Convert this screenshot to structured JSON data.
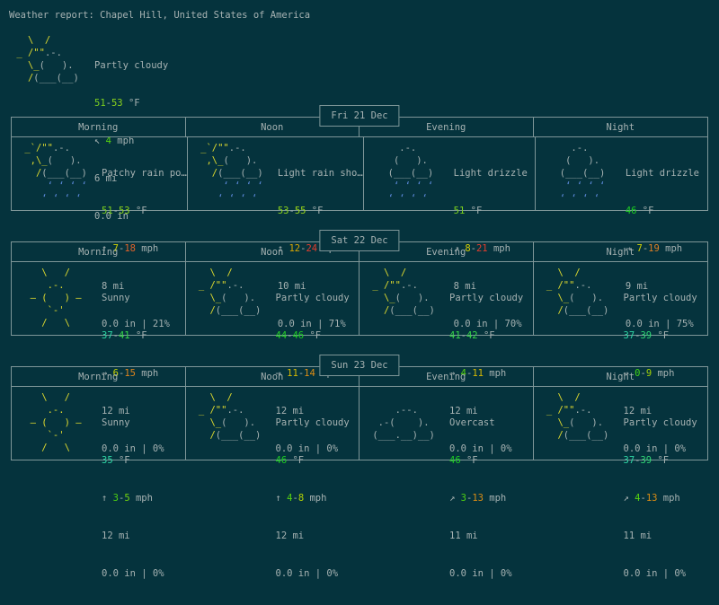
{
  "palette": {
    "bg": "#05333d",
    "fg": "#a6b2b2",
    "border": "#7e9698",
    "sun": "#ddd92f",
    "cloud": "#a6b2b2",
    "rain": "#5a87d6"
  },
  "title": "Weather report: Chapel Hill, United States of America",
  "columns": [
    "Morning",
    "Noon",
    "Evening",
    "Night"
  ],
  "icons": {
    "partly_cloudy": [
      [
        [
          "   \\  /",
          "sun"
        ]
      ],
      [
        [
          " _ /\"\"",
          "sun"
        ],
        [
          ".-.",
          "cloud"
        ]
      ],
      [
        [
          "   \\_",
          "sun"
        ],
        [
          "(   ).",
          "cloud"
        ]
      ],
      [
        [
          "   /",
          "sun"
        ],
        [
          "(___(__)",
          "cloud"
        ]
      ],
      []
    ],
    "sunny": [
      [
        [
          "    \\   /",
          "sun"
        ]
      ],
      [
        [
          "     .-.",
          "sun"
        ]
      ],
      [
        [
          "  – (   ) –",
          "sun"
        ]
      ],
      [
        [
          "     `-'",
          "sun"
        ]
      ],
      [
        [
          "    /   \\",
          "sun"
        ]
      ]
    ],
    "rain_sun": [
      [
        [
          " _`/\"\"",
          "sun"
        ],
        [
          ".-.",
          "cloud"
        ]
      ],
      [
        [
          "  ,\\_",
          "sun"
        ],
        [
          "(   ).",
          "cloud"
        ]
      ],
      [
        [
          "   /",
          "sun"
        ],
        [
          "(___(__)",
          "cloud"
        ]
      ],
      [
        [
          "     ‘ ‘ ‘ ‘",
          "rain"
        ]
      ],
      [
        [
          "    ‘ ‘ ‘ ‘",
          "rain"
        ]
      ]
    ],
    "drizzle": [
      [
        [
          "     .-.",
          "cloud"
        ]
      ],
      [
        [
          "    (   ).",
          "cloud"
        ]
      ],
      [
        [
          "   (___(__)",
          "cloud"
        ]
      ],
      [
        [
          "    ‘ ‘ ‘ ‘",
          "rain"
        ]
      ],
      [
        [
          "   ‘ ‘ ‘ ‘",
          "rain"
        ]
      ]
    ],
    "overcast": [
      [],
      [
        [
          "     .--.",
          "cloud"
        ]
      ],
      [
        [
          "  .-(    ).",
          "cloud"
        ]
      ],
      [
        [
          " (___.__)__)",
          "cloud"
        ]
      ],
      []
    ]
  },
  "current": {
    "icon": "partly_cloudy",
    "lines": [
      [
        [
          "Partly cloudy"
        ]
      ],
      [
        [
          "51",
          "#7ccf1f"
        ],
        [
          "-"
        ],
        [
          "53",
          "#8ed41c"
        ],
        [
          " °F"
        ]
      ],
      [
        [
          "↖ "
        ],
        [
          "4",
          "#57d410"
        ],
        [
          " mph"
        ]
      ],
      [
        [
          "6 mi"
        ]
      ],
      [
        [
          "0.0 in"
        ]
      ]
    ]
  },
  "days": [
    {
      "date": "Fri 21 Dec",
      "cells": [
        {
          "icon": "rain_sun",
          "lines": [
            [
              [
                "Patchy rain po…"
              ]
            ],
            [
              [
                "51",
                "#7ccf1f"
              ],
              [
                "-"
              ],
              [
                "53",
                "#8ed41c"
              ],
              [
                " °F"
              ]
            ],
            [
              [
                "↑ "
              ],
              [
                "7",
                "#d3d303"
              ],
              [
                "-"
              ],
              [
                "18",
                "#e0622a"
              ],
              [
                " mph"
              ]
            ],
            [
              [
                "8 mi"
              ]
            ],
            [
              [
                "0.0 in | 21%"
              ]
            ]
          ]
        },
        {
          "icon": "rain_sun",
          "lines": [
            [
              [
                "Light rain sho…"
              ]
            ],
            [
              [
                "53",
                "#8ed41c"
              ],
              [
                "-"
              ],
              [
                "55",
                "#9cd718"
              ],
              [
                " °F"
              ]
            ],
            [
              [
                "↑ "
              ],
              [
                "12",
                "#d9a603"
              ],
              [
                "-"
              ],
              [
                "24",
                "#e23d2e"
              ],
              [
                " mph"
              ]
            ],
            [
              [
                "10 mi"
              ]
            ],
            [
              [
                "0.0 in | 71%"
              ]
            ]
          ]
        },
        {
          "icon": "drizzle",
          "lines": [
            [
              [
                "Light drizzle"
              ]
            ],
            [
              [
                "51",
                "#7ccf1f"
              ],
              [
                " °F"
              ]
            ],
            [
              [
                "↗ "
              ],
              [
                "8",
                "#d6cf03"
              ],
              [
                "-"
              ],
              [
                "21",
                "#e23d2e"
              ],
              [
                " mph"
              ]
            ],
            [
              [
                "8 mi"
              ]
            ],
            [
              [
                "0.0 in | 70%"
              ]
            ]
          ]
        },
        {
          "icon": "drizzle",
          "lines": [
            [
              [
                "Light drizzle"
              ]
            ],
            [
              [
                "46",
                "#1ed121"
              ],
              [
                " °F"
              ]
            ],
            [
              [
                "→ "
              ],
              [
                "7",
                "#d3d303"
              ],
              [
                "-"
              ],
              [
                "19",
                "#df7f26"
              ],
              [
                " mph"
              ]
            ],
            [
              [
                "9 mi"
              ]
            ],
            [
              [
                "0.0 in | 75%"
              ]
            ]
          ]
        }
      ]
    },
    {
      "date": "Sat 22 Dec",
      "cells": [
        {
          "icon": "sunny",
          "lines": [
            [
              [
                "Sunny"
              ]
            ],
            [
              [
                "37",
                "#2fd7a5"
              ],
              [
                "-"
              ],
              [
                "41",
                "#36d748"
              ],
              [
                " °F"
              ]
            ],
            [
              [
                "→ "
              ],
              [
                "6",
                "#c9d303"
              ],
              [
                "-"
              ],
              [
                "15",
                "#dd841d"
              ],
              [
                " mph"
              ]
            ],
            [
              [
                "12 mi"
              ]
            ],
            [
              [
                "0.0 in | 0%"
              ]
            ]
          ]
        },
        {
          "icon": "partly_cloudy",
          "lines": [
            [
              [
                "Partly cloudy"
              ]
            ],
            [
              [
                "44",
                "#27d427"
              ],
              [
                "-"
              ],
              [
                "46",
                "#1ed121"
              ],
              [
                " °F"
              ]
            ],
            [
              [
                "→ "
              ],
              [
                "11",
                "#d6b902"
              ],
              [
                "-"
              ],
              [
                "14",
                "#dc8d14"
              ],
              [
                " mph"
              ]
            ],
            [
              [
                "12 mi"
              ]
            ],
            [
              [
                "0.0 in | 0%"
              ]
            ]
          ]
        },
        {
          "icon": "partly_cloudy",
          "lines": [
            [
              [
                "Partly cloudy"
              ]
            ],
            [
              [
                "41",
                "#36d748"
              ],
              [
                "-"
              ],
              [
                "42",
                "#36d748"
              ],
              [
                " °F"
              ]
            ],
            [
              [
                "→ "
              ],
              [
                "4",
                "#57d410"
              ],
              [
                "-"
              ],
              [
                "11",
                "#d6b902"
              ],
              [
                " mph"
              ]
            ],
            [
              [
                "12 mi"
              ]
            ],
            [
              [
                "0.0 in | 0%"
              ]
            ]
          ]
        },
        {
          "icon": "partly_cloudy",
          "lines": [
            [
              [
                "Partly cloudy"
              ]
            ],
            [
              [
                "37",
                "#2fd7a5"
              ],
              [
                "-"
              ],
              [
                "39",
                "#30d775"
              ],
              [
                " °F"
              ]
            ],
            [
              [
                "→ "
              ],
              [
                "0",
                "#3fd414"
              ],
              [
                "-"
              ],
              [
                "9",
                "#a3d105"
              ],
              [
                " mph"
              ]
            ],
            [
              [
                "12 mi"
              ]
            ],
            [
              [
                "0.0 in | 0%"
              ]
            ]
          ]
        }
      ]
    },
    {
      "date": "Sun 23 Dec",
      "cells": [
        {
          "icon": "sunny",
          "lines": [
            [
              [
                "Sunny"
              ]
            ],
            [
              [
                "35",
                "#2fd7a5"
              ],
              [
                " °F"
              ]
            ],
            [
              [
                "↑ "
              ],
              [
                "3",
                "#4fd212"
              ],
              [
                "-"
              ],
              [
                "5",
                "#74d40e"
              ],
              [
                " mph"
              ]
            ],
            [
              [
                "12 mi"
              ]
            ],
            [
              [
                "0.0 in | 0%"
              ]
            ]
          ]
        },
        {
          "icon": "partly_cloudy",
          "lines": [
            [
              [
                "Partly cloudy"
              ]
            ],
            [
              [
                "46",
                "#1ed121"
              ],
              [
                " °F"
              ]
            ],
            [
              [
                "↑ "
              ],
              [
                "4",
                "#57d410"
              ],
              [
                "-"
              ],
              [
                "8",
                "#b5d303"
              ],
              [
                " mph"
              ]
            ],
            [
              [
                "12 mi"
              ]
            ],
            [
              [
                "0.0 in | 0%"
              ]
            ]
          ]
        },
        {
          "icon": "overcast",
          "lines": [
            [
              [
                "Overcast"
              ]
            ],
            [
              [
                "46",
                "#1ed121"
              ],
              [
                " °F"
              ]
            ],
            [
              [
                "↗ "
              ],
              [
                "3",
                "#4fd212"
              ],
              [
                "-"
              ],
              [
                "13",
                "#dc8d14"
              ],
              [
                " mph"
              ]
            ],
            [
              [
                "11 mi"
              ]
            ],
            [
              [
                "0.0 in | 0%"
              ]
            ]
          ]
        },
        {
          "icon": "partly_cloudy",
          "lines": [
            [
              [
                "Partly cloudy"
              ]
            ],
            [
              [
                "37",
                "#2fd7a5"
              ],
              [
                "-"
              ],
              [
                "39",
                "#30d775"
              ],
              [
                " °F"
              ]
            ],
            [
              [
                "↗ "
              ],
              [
                "4",
                "#57d410"
              ],
              [
                "-"
              ],
              [
                "13",
                "#dc8d14"
              ],
              [
                " mph"
              ]
            ],
            [
              [
                "11 mi"
              ]
            ],
            [
              [
                "0.0 in | 0%"
              ]
            ]
          ]
        }
      ]
    }
  ]
}
